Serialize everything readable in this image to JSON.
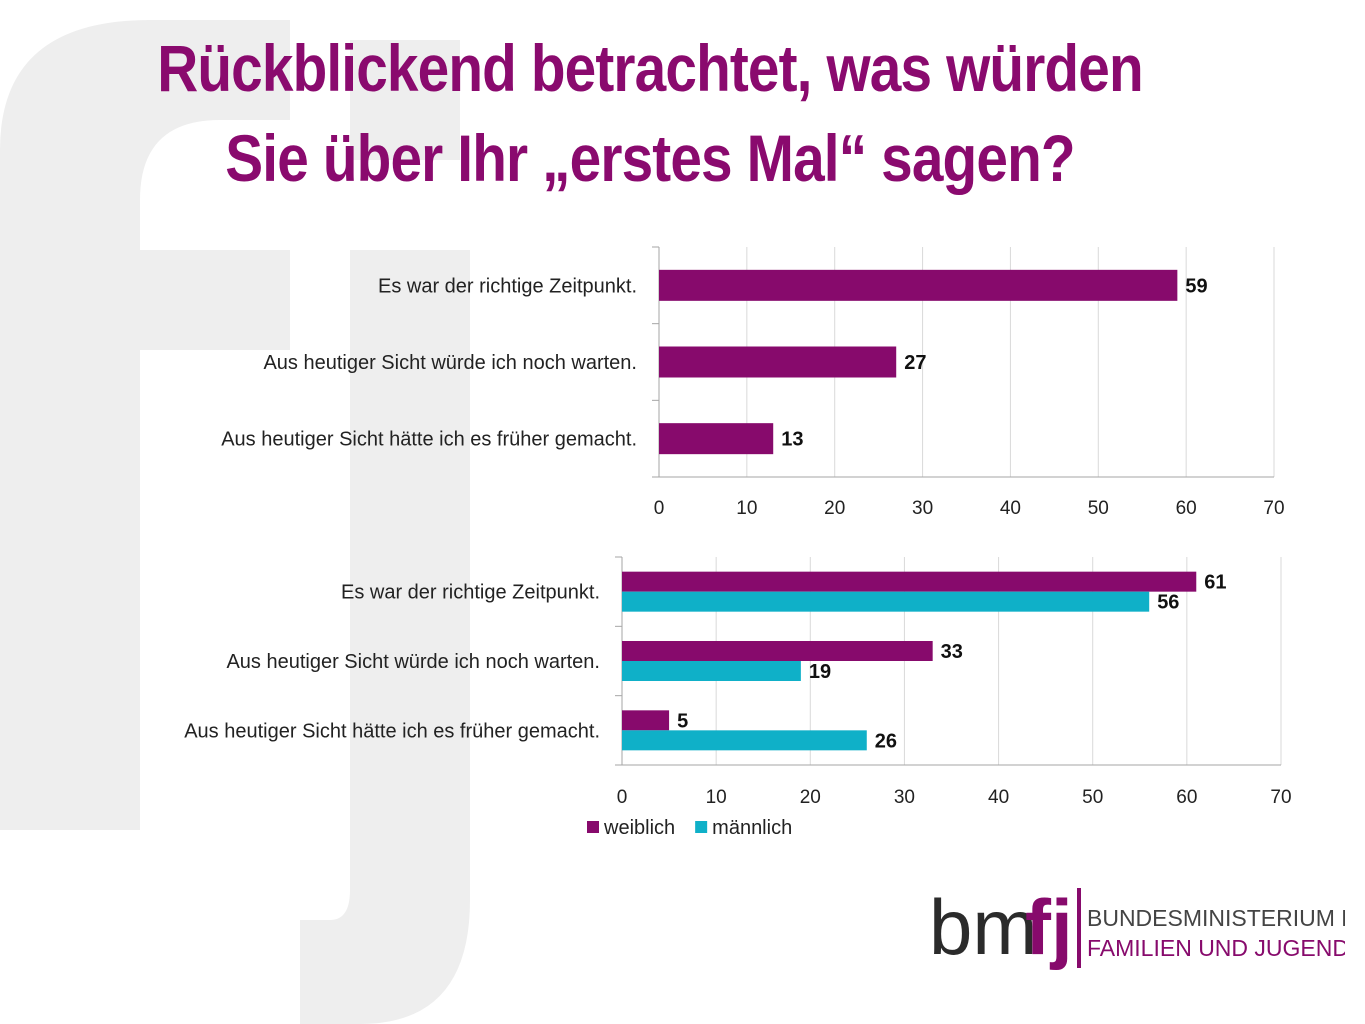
{
  "title": {
    "line1": "Rückblickend betrachtet, was würden",
    "line2": "Sie über Ihr „erstes Mal“ sagen?"
  },
  "colors": {
    "title": "#8a0a6e",
    "weiblich": "#870a6c",
    "maennlich": "#0fb0c8",
    "watermark": "#eeeeee"
  },
  "chart_data": [
    {
      "type": "bar",
      "orientation": "horizontal",
      "categories": [
        "Es war der richtige Zeitpunkt.",
        "Aus heutiger Sicht würde ich noch warten.",
        "Aus heutiger Sicht hätte ich es früher gemacht."
      ],
      "series": [
        {
          "values": [
            59,
            27,
            13
          ]
        }
      ],
      "xlim": [
        0,
        70
      ],
      "ticks": [
        0,
        10,
        20,
        30,
        40,
        50,
        60,
        70
      ],
      "grid": true,
      "legend": "none"
    },
    {
      "type": "bar",
      "orientation": "horizontal",
      "categories": [
        "Es war der richtige Zeitpunkt.",
        "Aus heutiger Sicht würde ich noch warten.",
        "Aus heutiger Sicht hätte ich es früher gemacht."
      ],
      "series": [
        {
          "name": "weiblich",
          "values": [
            61,
            33,
            5
          ]
        },
        {
          "name": "männlich",
          "values": [
            56,
            19,
            26
          ]
        }
      ],
      "xlim": [
        0,
        70
      ],
      "ticks": [
        0,
        10,
        20,
        30,
        40,
        50,
        60,
        70
      ],
      "grid": true,
      "legend": "bottom-left"
    }
  ],
  "logo": {
    "letters_dark": "bm",
    "letters_accent": "fj",
    "line1": "BUNDESMINISTERIUM FÜR",
    "line2": "FAMILIEN UND JUGEND"
  }
}
